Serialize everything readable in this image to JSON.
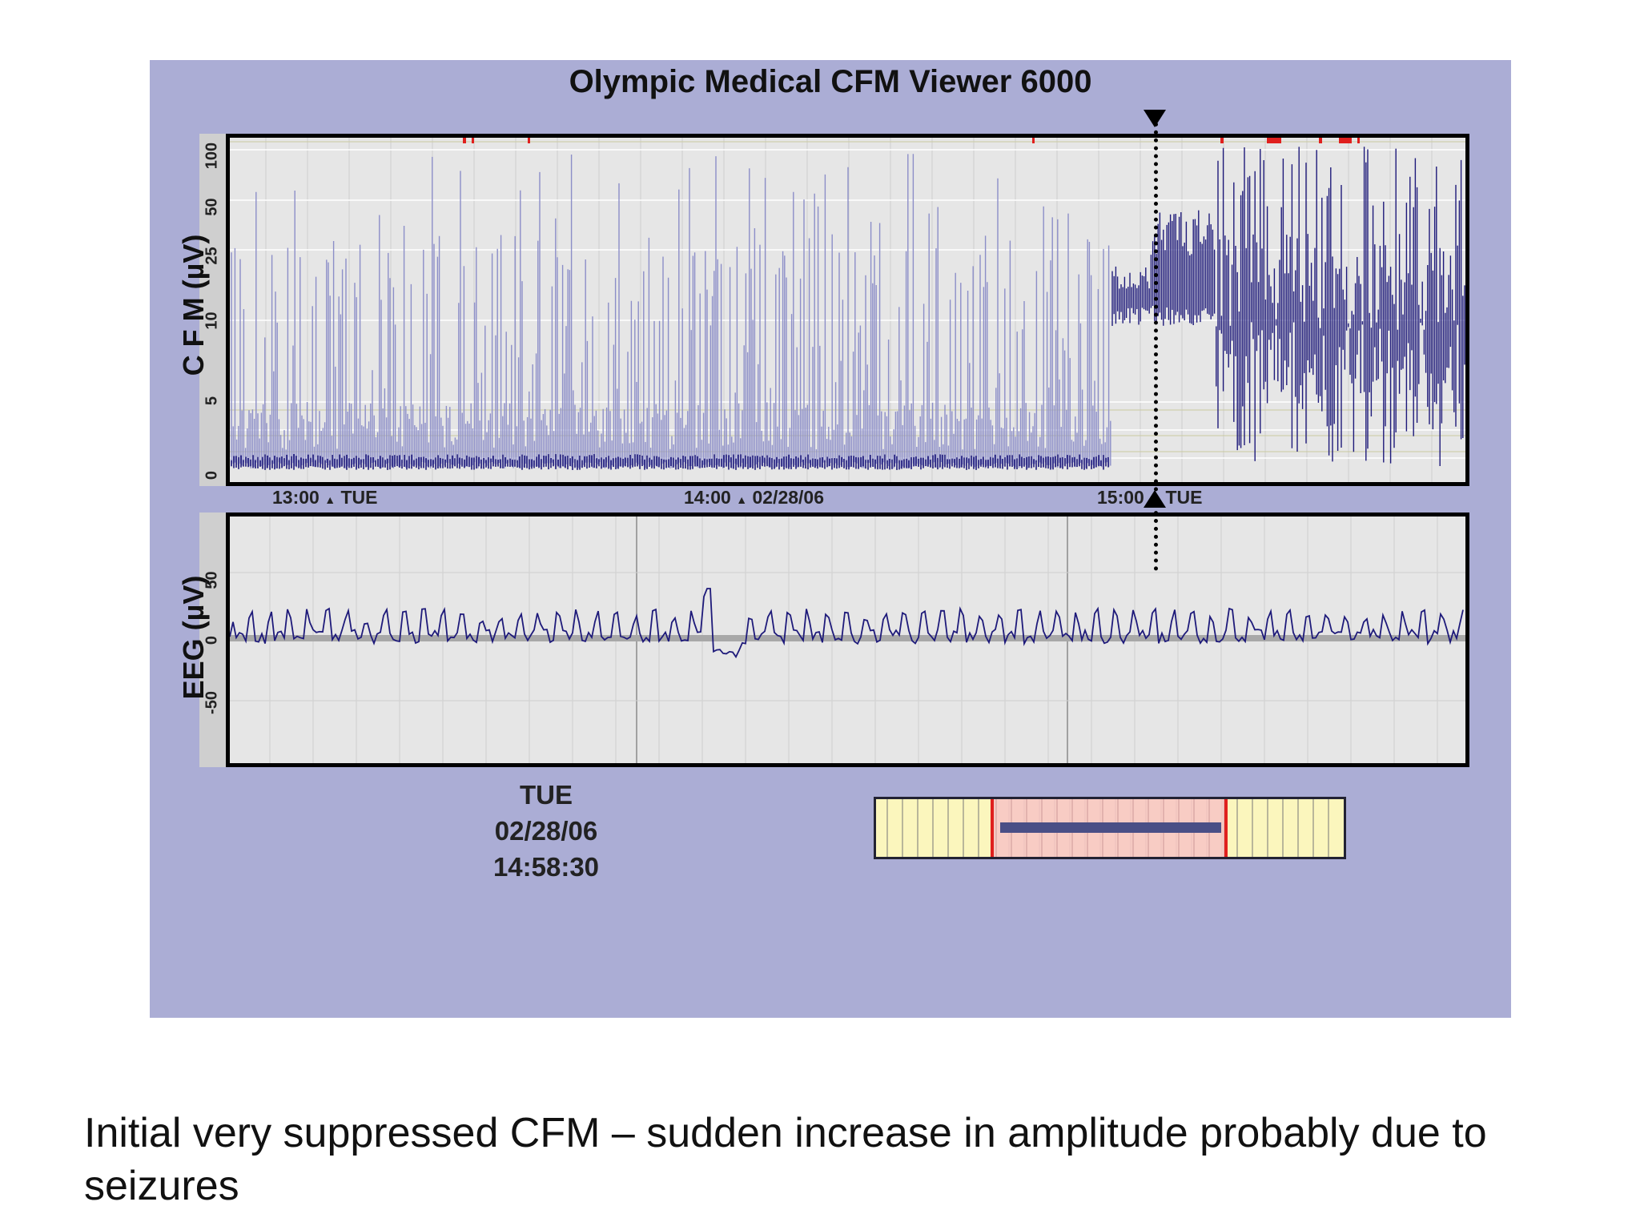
{
  "viewer": {
    "title": "Olympic Medical CFM Viewer 6000",
    "cfm": {
      "ylabel": "C F M (µV)",
      "yticks": [
        "100",
        "50",
        "25",
        "10",
        "5",
        "0"
      ]
    },
    "eeg": {
      "ylabel": "EEG (µV)",
      "yticks": [
        "50",
        "0",
        "-50"
      ]
    },
    "time_labels": [
      {
        "time": "13:00",
        "tag": "TUE"
      },
      {
        "time": "14:00",
        "tag": "02/28/06"
      },
      {
        "time": "15:00",
        "tag": "TUE"
      }
    ],
    "cursor": {
      "day": "TUE",
      "date": "02/28/06",
      "time": "14:58:30"
    },
    "colors": {
      "background": "#abadd5",
      "trace": "#1e1a7a",
      "trace_fill": "#8c8ec8",
      "artifact_marker": "#e0201e",
      "nav_window": "#f7c8c4",
      "nav_bg": "#fbf6bd"
    }
  },
  "caption": "Initial very suppressed CFM – sudden increase in amplitude probably due to seizures"
}
